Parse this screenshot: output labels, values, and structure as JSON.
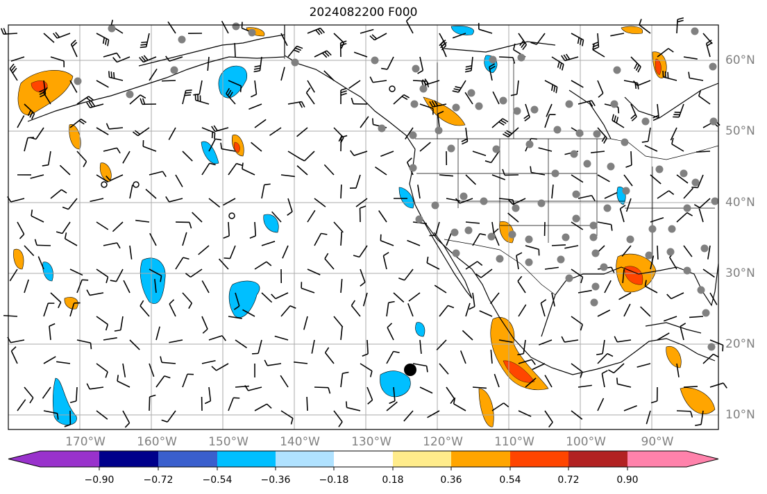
{
  "title": "2024082200 F000",
  "map": {
    "lon_labels": [
      "170°W",
      "160°W",
      "150°W",
      "140°W",
      "130°W",
      "120°W",
      "110°W",
      "100°W",
      "90°W"
    ],
    "lat_labels": [
      "60°N",
      "50°N",
      "40°N",
      "30°N",
      "20°N",
      "10°N"
    ]
  },
  "colorbar": {
    "ticks": [
      "−0.90",
      "−0.72",
      "−0.54",
      "−0.36",
      "−0.18",
      "0.18",
      "0.36",
      "0.54",
      "0.72",
      "0.90"
    ],
    "colors": [
      "#9932cc",
      "#00008b",
      "#3a5fcd",
      "#00bfff",
      "#b0e2ff",
      "#ffffff",
      "#ffec8b",
      "#ffa500",
      "#ff4500",
      "#b22222",
      "#ff82ab"
    ]
  }
}
